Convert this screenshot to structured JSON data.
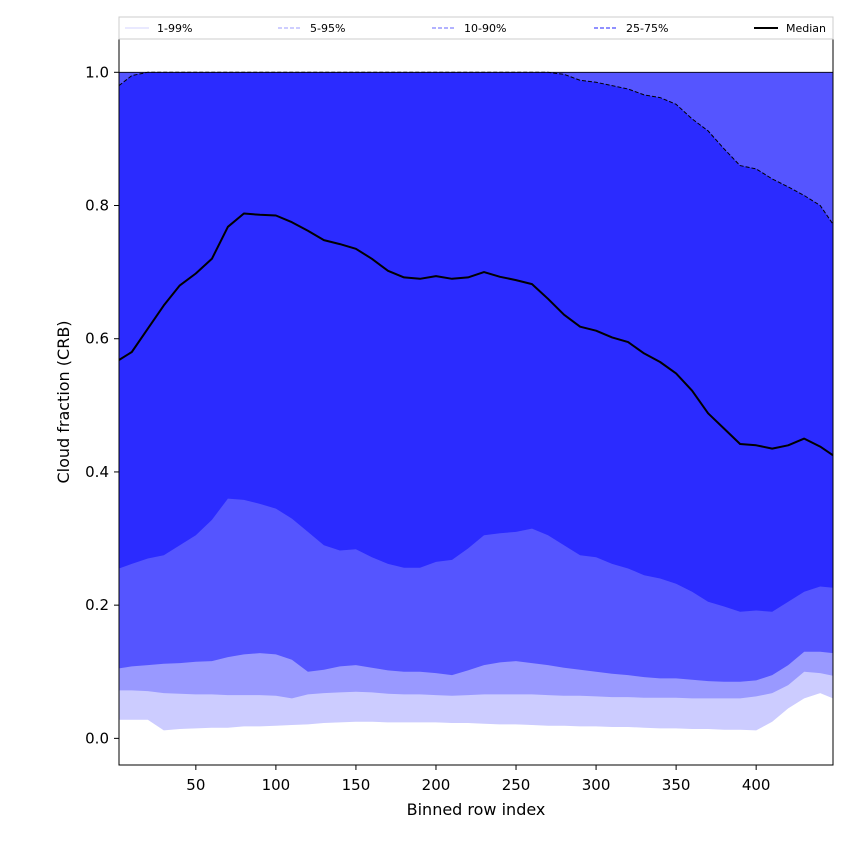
{
  "chart_data": {
    "type": "area",
    "xlabel": "Binned row index",
    "ylabel": "Cloud fraction (CRB)",
    "xlim": [
      2,
      448
    ],
    "ylim": [
      -0.04,
      1.05
    ],
    "xticks": [
      50,
      100,
      150,
      200,
      250,
      300,
      350,
      400
    ],
    "yticks": [
      0.0,
      0.2,
      0.4,
      0.6,
      0.8,
      1.0
    ],
    "ytick_labels": [
      "0.0",
      "0.2",
      "0.4",
      "0.6",
      "0.8",
      "1.0"
    ],
    "grid": false,
    "legend_position": "top",
    "x": [
      2,
      10,
      20,
      30,
      40,
      50,
      60,
      70,
      80,
      90,
      100,
      110,
      120,
      130,
      140,
      150,
      160,
      170,
      180,
      190,
      200,
      210,
      220,
      230,
      240,
      250,
      260,
      270,
      280,
      290,
      300,
      310,
      320,
      330,
      340,
      350,
      360,
      370,
      380,
      390,
      400,
      410,
      420,
      430,
      440,
      448
    ],
    "bands": [
      {
        "name": "1-99%",
        "color": "#ccccff",
        "lower": [
          0.028,
          0.028,
          0.028,
          0.012,
          0.014,
          0.015,
          0.016,
          0.016,
          0.018,
          0.018,
          0.019,
          0.02,
          0.021,
          0.023,
          0.024,
          0.025,
          0.025,
          0.024,
          0.024,
          0.024,
          0.024,
          0.023,
          0.023,
          0.022,
          0.021,
          0.021,
          0.02,
          0.019,
          0.019,
          0.018,
          0.018,
          0.017,
          0.017,
          0.016,
          0.015,
          0.015,
          0.014,
          0.014,
          0.013,
          0.013,
          0.012,
          0.025,
          0.045,
          0.06,
          0.068,
          0.06
        ],
        "upper": [
          1.0,
          1.0,
          1.0,
          1.0,
          1.0,
          1.0,
          1.0,
          1.0,
          1.0,
          1.0,
          1.0,
          1.0,
          1.0,
          1.0,
          1.0,
          1.0,
          1.0,
          1.0,
          1.0,
          1.0,
          1.0,
          1.0,
          1.0,
          1.0,
          1.0,
          1.0,
          1.0,
          1.0,
          1.0,
          1.0,
          1.0,
          1.0,
          1.0,
          1.0,
          1.0,
          1.0,
          1.0,
          1.0,
          1.0,
          1.0,
          1.0,
          1.0,
          1.0,
          1.0,
          1.0,
          1.0
        ]
      },
      {
        "name": "5-95%",
        "color": "#9999ff",
        "lower": [
          0.072,
          0.072,
          0.071,
          0.068,
          0.067,
          0.066,
          0.066,
          0.065,
          0.065,
          0.065,
          0.064,
          0.06,
          0.066,
          0.068,
          0.069,
          0.07,
          0.069,
          0.067,
          0.066,
          0.066,
          0.065,
          0.064,
          0.065,
          0.066,
          0.066,
          0.066,
          0.066,
          0.065,
          0.064,
          0.064,
          0.063,
          0.062,
          0.062,
          0.061,
          0.061,
          0.061,
          0.06,
          0.06,
          0.06,
          0.06,
          0.063,
          0.068,
          0.08,
          0.1,
          0.098,
          0.094
        ],
        "upper": [
          1.0,
          1.0,
          1.0,
          1.0,
          1.0,
          1.0,
          1.0,
          1.0,
          1.0,
          1.0,
          1.0,
          1.0,
          1.0,
          1.0,
          1.0,
          1.0,
          1.0,
          1.0,
          1.0,
          1.0,
          1.0,
          1.0,
          1.0,
          1.0,
          1.0,
          1.0,
          1.0,
          1.0,
          1.0,
          1.0,
          1.0,
          1.0,
          1.0,
          1.0,
          1.0,
          1.0,
          1.0,
          1.0,
          1.0,
          1.0,
          1.0,
          1.0,
          1.0,
          1.0,
          1.0,
          1.0
        ]
      },
      {
        "name": "10-90%",
        "color": "#5555ff",
        "lower": [
          0.105,
          0.108,
          0.11,
          0.112,
          0.113,
          0.115,
          0.116,
          0.122,
          0.126,
          0.128,
          0.126,
          0.118,
          0.1,
          0.103,
          0.108,
          0.11,
          0.106,
          0.102,
          0.1,
          0.1,
          0.098,
          0.095,
          0.102,
          0.11,
          0.114,
          0.116,
          0.113,
          0.11,
          0.106,
          0.103,
          0.1,
          0.097,
          0.095,
          0.092,
          0.09,
          0.09,
          0.088,
          0.086,
          0.085,
          0.085,
          0.087,
          0.095,
          0.11,
          0.13,
          0.13,
          0.128
        ],
        "upper": [
          1.0,
          1.0,
          1.0,
          1.0,
          1.0,
          1.0,
          1.0,
          1.0,
          1.0,
          1.0,
          1.0,
          1.0,
          1.0,
          1.0,
          1.0,
          1.0,
          1.0,
          1.0,
          1.0,
          1.0,
          1.0,
          1.0,
          1.0,
          1.0,
          1.0,
          1.0,
          1.0,
          1.0,
          1.0,
          1.0,
          1.0,
          1.0,
          1.0,
          1.0,
          1.0,
          1.0,
          1.0,
          1.0,
          1.0,
          1.0,
          1.0,
          1.0,
          1.0,
          1.0,
          1.0,
          1.0
        ]
      },
      {
        "name": "25-75%",
        "color": "#2b2bff",
        "lower": [
          0.255,
          0.262,
          0.27,
          0.275,
          0.29,
          0.305,
          0.328,
          0.36,
          0.358,
          0.352,
          0.345,
          0.33,
          0.31,
          0.29,
          0.282,
          0.284,
          0.272,
          0.262,
          0.256,
          0.256,
          0.265,
          0.268,
          0.285,
          0.305,
          0.308,
          0.31,
          0.315,
          0.305,
          0.29,
          0.275,
          0.272,
          0.262,
          0.255,
          0.245,
          0.24,
          0.232,
          0.22,
          0.205,
          0.198,
          0.19,
          0.192,
          0.19,
          0.205,
          0.22,
          0.228,
          0.226
        ],
        "upper": [
          0.98,
          0.995,
          1.0,
          1.0,
          1.0,
          1.0,
          1.0,
          1.0,
          1.0,
          1.0,
          1.0,
          1.0,
          1.0,
          1.0,
          1.0,
          1.0,
          1.0,
          1.0,
          1.0,
          1.0,
          1.0,
          1.0,
          1.0,
          1.0,
          1.0,
          1.0,
          1.0,
          1.0,
          0.997,
          0.988,
          0.985,
          0.98,
          0.975,
          0.966,
          0.962,
          0.952,
          0.93,
          0.912,
          0.885,
          0.86,
          0.855,
          0.84,
          0.828,
          0.815,
          0.8,
          0.772
        ]
      }
    ],
    "median": {
      "name": "Median",
      "values": [
        0.568,
        0.58,
        0.615,
        0.65,
        0.68,
        0.698,
        0.72,
        0.768,
        0.788,
        0.786,
        0.785,
        0.775,
        0.762,
        0.748,
        0.742,
        0.735,
        0.72,
        0.702,
        0.692,
        0.69,
        0.694,
        0.69,
        0.692,
        0.7,
        0.693,
        0.688,
        0.682,
        0.66,
        0.636,
        0.618,
        0.612,
        0.602,
        0.595,
        0.578,
        0.565,
        0.548,
        0.522,
        0.488,
        0.465,
        0.442,
        0.44,
        0.435,
        0.44,
        0.45,
        0.438,
        0.425
      ]
    },
    "legend": [
      {
        "label": "1-99%",
        "color": "#dcdcff",
        "dash": "solid"
      },
      {
        "label": "5-95%",
        "color": "#b0b0ff",
        "dash": "dashed"
      },
      {
        "label": "10-90%",
        "color": "#8585ff",
        "dash": "dashed"
      },
      {
        "label": "25-75%",
        "color": "#4d4dff",
        "dash": "dashed"
      },
      {
        "label": "Median",
        "color": "#000000",
        "dash": "solid"
      }
    ]
  }
}
